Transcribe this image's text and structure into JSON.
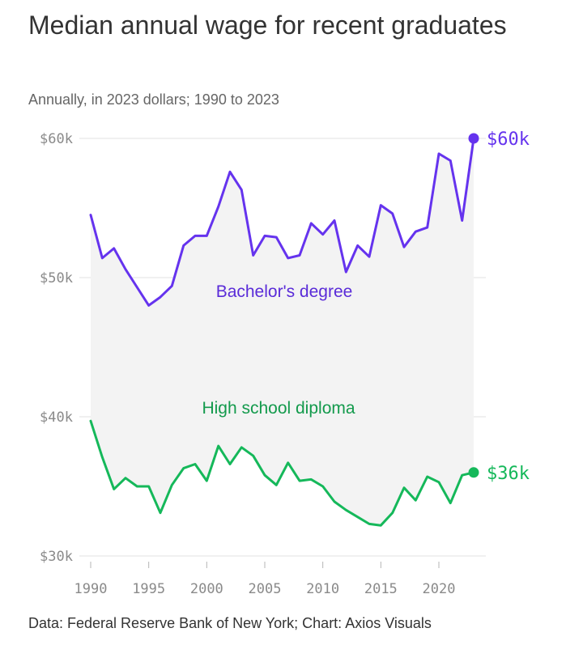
{
  "title": "Median annual wage for recent graduates",
  "subtitle": "Annually, in 2023 dollars; 1990 to 2023",
  "source": "Data: Federal Reserve Bank of New York; Chart: Axios Visuals",
  "chart_data": {
    "type": "line",
    "x": [
      1990,
      1991,
      1992,
      1993,
      1994,
      1995,
      1996,
      1997,
      1998,
      1999,
      2000,
      2001,
      2002,
      2003,
      2004,
      2005,
      2006,
      2007,
      2008,
      2009,
      2010,
      2011,
      2012,
      2013,
      2014,
      2015,
      2016,
      2017,
      2018,
      2019,
      2020,
      2021,
      2022,
      2023
    ],
    "ylim": [
      30000,
      60000
    ],
    "y_ticks": [
      {
        "value": 60000,
        "label": "$60k"
      },
      {
        "value": 50000,
        "label": "$50k"
      },
      {
        "value": 40000,
        "label": "$40k"
      },
      {
        "value": 30000,
        "label": "$30k"
      }
    ],
    "x_ticks": [
      {
        "value": 1990,
        "label": "1990"
      },
      {
        "value": 1995,
        "label": "1995"
      },
      {
        "value": 2000,
        "label": "2000"
      },
      {
        "value": 2005,
        "label": "2005"
      },
      {
        "value": 2010,
        "label": "2010"
      },
      {
        "value": 2015,
        "label": "2015"
      },
      {
        "value": 2020,
        "label": "2020"
      }
    ],
    "grid": true,
    "series": [
      {
        "name": "Bachelor's degree",
        "color": "#6533ee",
        "end_label": "$60k",
        "values": [
          54500,
          51400,
          52100,
          50600,
          49300,
          48000,
          48600,
          49400,
          52300,
          53000,
          53000,
          55100,
          57600,
          56300,
          51600,
          53000,
          52900,
          51400,
          51600,
          53900,
          53100,
          54100,
          50400,
          52300,
          51500,
          55200,
          54600,
          52200,
          53300,
          53600,
          58900,
          58400,
          54100,
          60000
        ]
      },
      {
        "name": "High school diploma",
        "color": "#15b85a",
        "end_label": "$36k",
        "values": [
          39700,
          37100,
          34800,
          35600,
          35000,
          35000,
          33100,
          35100,
          36300,
          36600,
          35400,
          37900,
          36600,
          37800,
          37200,
          35800,
          35100,
          36700,
          35400,
          35500,
          35000,
          33900,
          33300,
          32800,
          32300,
          32200,
          33100,
          34900,
          34000,
          35700,
          35300,
          33800,
          35800,
          36000
        ]
      }
    ]
  }
}
